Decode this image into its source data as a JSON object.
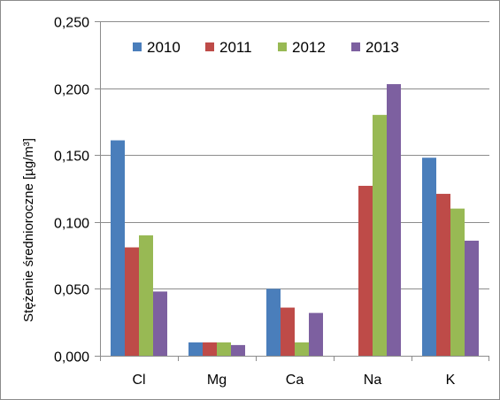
{
  "chart_data": {
    "type": "bar",
    "categories": [
      "Cl",
      "Mg",
      "Ca",
      "Na",
      "K"
    ],
    "series": [
      {
        "name": "2010",
        "color": "#4a7ebb",
        "values": [
          0.161,
          0.01,
          0.05,
          0.0,
          0.148
        ]
      },
      {
        "name": "2011",
        "color": "#be4b48",
        "values": [
          0.081,
          0.01,
          0.036,
          0.127,
          0.121
        ]
      },
      {
        "name": "2012",
        "color": "#98b954",
        "values": [
          0.09,
          0.01,
          0.01,
          0.18,
          0.11
        ]
      },
      {
        "name": "2013",
        "color": "#7d60a0",
        "values": [
          0.048,
          0.008,
          0.032,
          0.203,
          0.086
        ]
      }
    ],
    "xlabel": "",
    "ylabel": "Stężenie średnioroczne [µg/m³]",
    "ylim": [
      0,
      0.25
    ],
    "yticks": [
      0,
      0.05,
      0.1,
      0.15,
      0.2,
      0.25
    ],
    "ytick_labels": [
      "0,000",
      "0,050",
      "0,100",
      "0,150",
      "0,200",
      "0,250"
    ],
    "grid": true,
    "legend_position": "top",
    "colors": {
      "grid": "#8c8c8c",
      "axis": "#8c8c8c"
    }
  }
}
